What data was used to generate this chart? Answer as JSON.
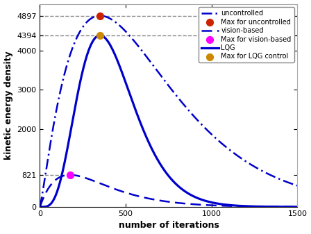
{
  "title": "",
  "xlabel": "number of iterations",
  "ylabel": "kinetic energy density",
  "xlim": [
    0,
    1500
  ],
  "ylim": [
    0,
    5200
  ],
  "xticks": [
    0,
    500,
    1000,
    1500
  ],
  "yticks": [
    0,
    821,
    2000,
    3000,
    4000,
    4394,
    4897
  ],
  "ytick_labels": [
    "0",
    "821",
    "2000",
    "3000",
    "4000",
    "4394",
    "4897"
  ],
  "uncontrolled_peak_x": 350,
  "uncontrolled_peak_y": 4897,
  "uncontrolled_alpha": 2.2,
  "vision_peak_x": 175,
  "vision_peak_y": 821,
  "vision_alpha": 2.0,
  "lqg_peak_x": 350,
  "lqg_peak_y": 4394,
  "lqg_alpha": 5.5,
  "hline_color": "#888888",
  "curve_color": "#0000cc",
  "uncontrolled_max_color": "#cc2200",
  "vision_max_color": "#ff00ff",
  "lqg_max_color": "#cc8800",
  "legend_labels": [
    "uncontrolled",
    "Max for uncontrolled",
    "vision-based",
    "Max for vision-based",
    "LQG",
    "Max for LQG control"
  ],
  "figsize": [
    4.48,
    3.37
  ],
  "dpi": 100,
  "font_size": 8,
  "label_font_size": 9,
  "tick_fontsize": 8
}
